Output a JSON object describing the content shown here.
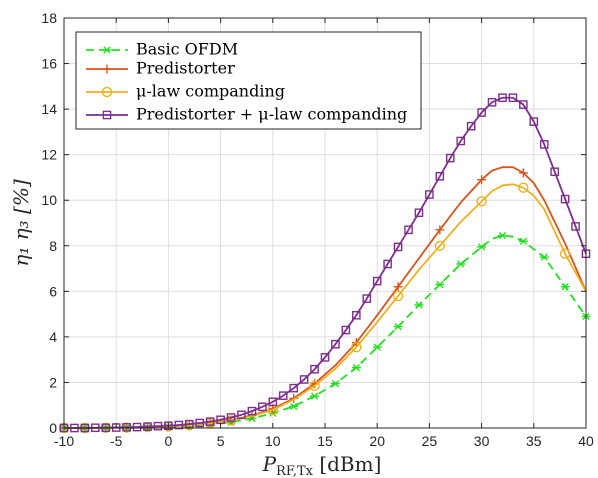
{
  "chart_data": {
    "type": "line",
    "x_label_main": "P",
    "x_label_sub": "RF,Tx",
    "x_label_unit": " [dBm]",
    "y_label": "η₁ η₃ [%]",
    "xlim": [
      -10,
      40
    ],
    "ylim": [
      0,
      18
    ],
    "x_ticks": [
      -10,
      -5,
      0,
      5,
      10,
      15,
      20,
      25,
      30,
      35,
      40
    ],
    "y_ticks": [
      0,
      2,
      4,
      6,
      8,
      10,
      12,
      14,
      16,
      18
    ],
    "grid": true,
    "legend_position": "top-left",
    "series": [
      {
        "name": "Basic OFDM",
        "color": "#22e01f",
        "line_style": "dashed",
        "marker": "asterisk",
        "x": [
          -10,
          -8,
          -6,
          -4,
          -2,
          0,
          2,
          4,
          6,
          8,
          10,
          12,
          14,
          16,
          18,
          20,
          22,
          24,
          26,
          28,
          30,
          31,
          32,
          33,
          34,
          35,
          36,
          38,
          40
        ],
        "y": [
          0.0,
          0.0,
          0.01,
          0.02,
          0.03,
          0.05,
          0.09,
          0.16,
          0.25,
          0.42,
          0.65,
          0.95,
          1.4,
          1.95,
          2.65,
          3.55,
          4.45,
          5.4,
          6.3,
          7.2,
          7.95,
          8.3,
          8.45,
          8.4,
          8.2,
          7.85,
          7.5,
          6.2,
          4.9
        ],
        "marker_x": [
          -10,
          -8,
          -6,
          -4,
          -2,
          0,
          2,
          4,
          6,
          8,
          10,
          12,
          14,
          16,
          18,
          20,
          22,
          24,
          26,
          28,
          30,
          32,
          34,
          36,
          38,
          40
        ],
        "marker_y": [
          0.0,
          0.0,
          0.01,
          0.02,
          0.03,
          0.05,
          0.09,
          0.16,
          0.25,
          0.42,
          0.65,
          0.95,
          1.4,
          1.95,
          2.65,
          3.55,
          4.45,
          5.4,
          6.3,
          7.2,
          7.95,
          8.45,
          8.2,
          7.5,
          6.2,
          4.9
        ]
      },
      {
        "name": "Predistorter",
        "color": "#d9541a",
        "line_style": "solid",
        "marker": "plus",
        "x": [
          -10,
          -8,
          -6,
          -4,
          -2,
          0,
          2,
          4,
          6,
          8,
          10,
          12,
          14,
          16,
          18,
          20,
          22,
          24,
          26,
          28,
          30,
          31,
          32,
          33,
          34,
          35,
          36,
          38,
          40
        ],
        "y": [
          0.0,
          0.0,
          0.01,
          0.02,
          0.04,
          0.07,
          0.12,
          0.21,
          0.35,
          0.55,
          0.85,
          1.3,
          1.95,
          2.75,
          3.75,
          4.95,
          6.2,
          7.45,
          8.7,
          9.9,
          10.9,
          11.3,
          11.45,
          11.45,
          11.2,
          10.75,
          10.0,
          8.1,
          6.0
        ],
        "marker_x": [
          -10,
          -8,
          -6,
          -4,
          -2,
          0,
          2,
          4,
          6,
          8,
          10,
          12,
          14,
          18,
          22,
          26,
          30,
          34
        ],
        "marker_y": [
          0.0,
          0.0,
          0.01,
          0.02,
          0.04,
          0.07,
          0.12,
          0.21,
          0.35,
          0.55,
          0.85,
          1.3,
          1.95,
          3.75,
          6.2,
          8.7,
          10.9,
          11.2
        ]
      },
      {
        "name": "μ-law companding",
        "color": "#edb120",
        "line_style": "solid",
        "marker": "circle",
        "x": [
          -10,
          -8,
          -6,
          -4,
          -2,
          0,
          2,
          4,
          6,
          8,
          10,
          12,
          14,
          16,
          18,
          20,
          22,
          24,
          26,
          28,
          30,
          31,
          32,
          33,
          34,
          35,
          36,
          38,
          40
        ],
        "y": [
          0.0,
          0.0,
          0.01,
          0.02,
          0.04,
          0.07,
          0.12,
          0.2,
          0.33,
          0.52,
          0.8,
          1.25,
          1.85,
          2.6,
          3.55,
          4.65,
          5.8,
          6.95,
          8.0,
          9.05,
          9.95,
          10.4,
          10.65,
          10.7,
          10.55,
          10.2,
          9.6,
          7.65,
          6.0
        ],
        "marker_x": [
          -10,
          -8,
          -6,
          -4,
          -2,
          0,
          2,
          4,
          6,
          10,
          14,
          18,
          22,
          26,
          30,
          34,
          38
        ],
        "marker_y": [
          0.0,
          0.0,
          0.01,
          0.02,
          0.04,
          0.07,
          0.12,
          0.2,
          0.33,
          0.8,
          1.85,
          3.55,
          5.8,
          8.0,
          9.95,
          10.55,
          7.65
        ]
      },
      {
        "name": "Predistorter + μ-law companding",
        "color": "#7e2f8e",
        "line_style": "solid",
        "marker": "square",
        "x": [
          -10,
          -9,
          -8,
          -7,
          -6,
          -5,
          -4,
          -3,
          -2,
          -1,
          0,
          1,
          2,
          3,
          4,
          5,
          6,
          7,
          8,
          9,
          10,
          11,
          12,
          13,
          14,
          15,
          16,
          17,
          18,
          19,
          20,
          21,
          22,
          23,
          24,
          25,
          26,
          27,
          28,
          29,
          30,
          31,
          32,
          33,
          34,
          35,
          36,
          37,
          38,
          39,
          40
        ],
        "y": [
          0.0,
          0.0,
          0.0,
          0.01,
          0.01,
          0.02,
          0.03,
          0.04,
          0.06,
          0.08,
          0.1,
          0.13,
          0.17,
          0.22,
          0.28,
          0.36,
          0.46,
          0.58,
          0.74,
          0.93,
          1.15,
          1.42,
          1.75,
          2.13,
          2.58,
          3.1,
          3.68,
          4.3,
          4.95,
          5.68,
          6.45,
          7.2,
          7.95,
          8.7,
          9.45,
          10.25,
          11.05,
          11.85,
          12.6,
          13.25,
          13.85,
          14.3,
          14.5,
          14.5,
          14.2,
          13.45,
          12.45,
          11.25,
          10.05,
          8.85,
          7.65
        ],
        "marker_x": [
          -10,
          -9,
          -8,
          -7,
          -6,
          -5,
          -4,
          -3,
          -2,
          -1,
          0,
          1,
          2,
          3,
          4,
          5,
          6,
          7,
          8,
          9,
          10,
          11,
          12,
          13,
          14,
          15,
          16,
          17,
          18,
          19,
          20,
          21,
          22,
          23,
          24,
          25,
          26,
          27,
          28,
          29,
          30,
          31,
          32,
          33,
          34,
          35,
          36,
          37,
          38,
          39,
          40
        ],
        "marker_y": [
          0.0,
          0.0,
          0.0,
          0.01,
          0.01,
          0.02,
          0.03,
          0.04,
          0.06,
          0.08,
          0.1,
          0.13,
          0.17,
          0.22,
          0.28,
          0.36,
          0.46,
          0.58,
          0.74,
          0.93,
          1.15,
          1.42,
          1.75,
          2.13,
          2.58,
          3.1,
          3.68,
          4.3,
          4.95,
          5.68,
          6.45,
          7.2,
          7.95,
          8.7,
          9.45,
          10.25,
          11.05,
          11.85,
          12.6,
          13.25,
          13.85,
          14.3,
          14.5,
          14.5,
          14.2,
          13.45,
          12.45,
          11.25,
          10.05,
          8.85,
          7.65
        ]
      }
    ]
  }
}
